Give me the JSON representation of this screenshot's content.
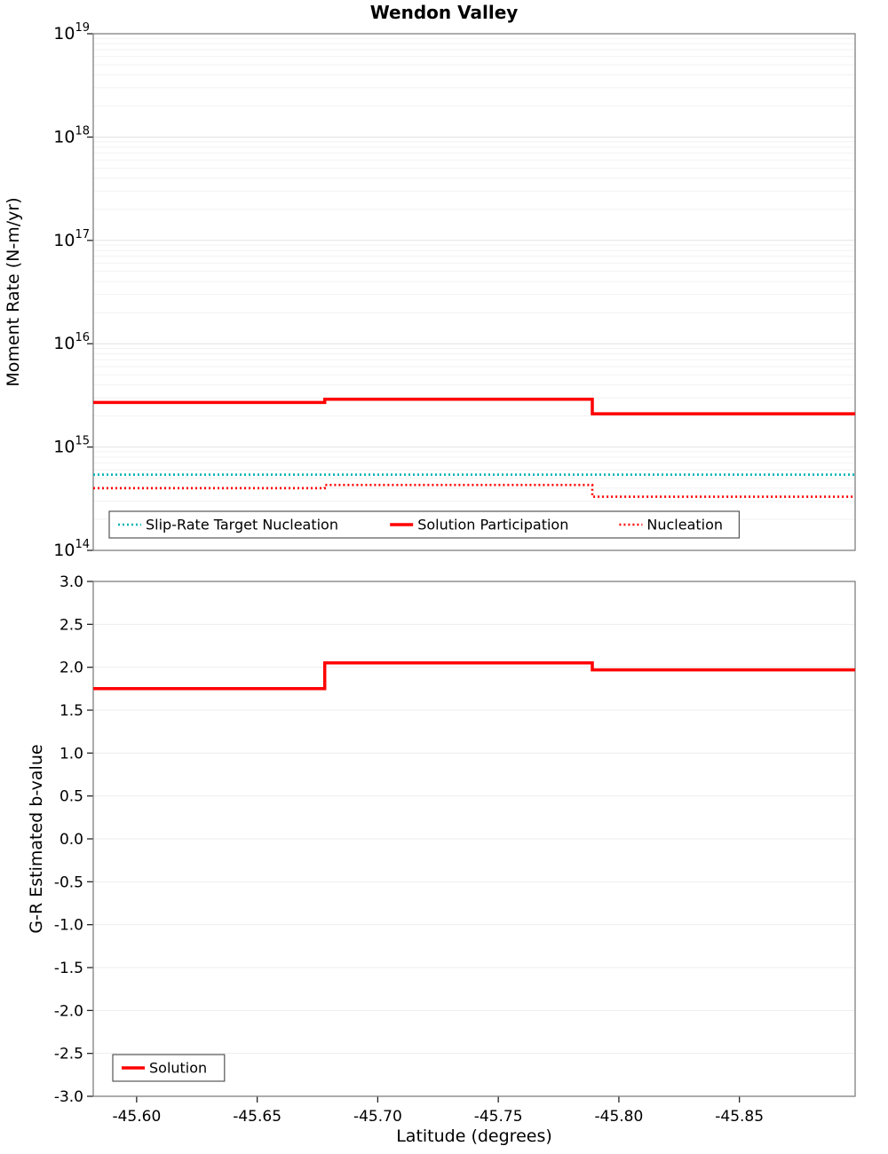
{
  "chart_data": [
    {
      "type": "line",
      "subtype": "step",
      "title": "Wendon Valley",
      "ylabel": "Moment Rate (N-m/yr)",
      "yscale": "log",
      "ylim": [
        100000000000000.0,
        1e+19
      ],
      "ytick_base": "10",
      "ytick_exponents": [
        14,
        15,
        16,
        17,
        18,
        19
      ],
      "xlim": [
        -45.582,
        -45.898
      ],
      "x_inverted": true,
      "x_edges": [
        -45.582,
        -45.678,
        -45.789,
        -45.898
      ],
      "grid": "on",
      "legend_position": "bottom-center-inside",
      "series": [
        {
          "name": "Slip-Rate Target Nucleation",
          "color": "#00b2b2",
          "style": "dotted",
          "values": [
            540000000000000.0,
            540000000000000.0,
            540000000000000.0
          ]
        },
        {
          "name": "Solution Participation",
          "color": "#ff0000",
          "style": "solid",
          "values": [
            2700000000000000.0,
            2900000000000000.0,
            2100000000000000.0
          ]
        },
        {
          "name": "Nucleation",
          "color": "#ff0000",
          "style": "dotted",
          "values": [
            400000000000000.0,
            430000000000000.0,
            330000000000000.0
          ]
        }
      ]
    },
    {
      "type": "line",
      "subtype": "step",
      "ylabel": "G-R Estimated b-value",
      "xlabel": "Latitude (degrees)",
      "ylim": [
        -3.0,
        3.0
      ],
      "ytick_labels": [
        "3.0",
        "2.5",
        "2.0",
        "1.5",
        "1.0",
        "0.5",
        "0.0",
        "-0.5",
        "-1.0",
        "-1.5",
        "-2.0",
        "-2.5",
        "-3.0"
      ],
      "xlim": [
        -45.582,
        -45.898
      ],
      "x_inverted": true,
      "xticks": [
        -45.6,
        -45.65,
        -45.7,
        -45.75,
        -45.8,
        -45.85
      ],
      "xtick_labels": [
        "-45.60",
        "-45.65",
        "-45.70",
        "-45.75",
        "-45.80",
        "-45.85"
      ],
      "x_edges": [
        -45.582,
        -45.678,
        -45.789,
        -45.898
      ],
      "grid": "on",
      "legend_position": "bottom-left-inside",
      "series": [
        {
          "name": "Solution",
          "color": "#ff0000",
          "style": "solid",
          "values": [
            1.75,
            2.05,
            1.97
          ]
        }
      ]
    }
  ],
  "colors": {
    "grid_major": "#e2e2e2",
    "grid_minor": "#f2f2f2",
    "frame": "#808080",
    "tick": "#222222",
    "legend_border": "#555555",
    "teal": "#00b2b2",
    "red": "#ff0000"
  }
}
